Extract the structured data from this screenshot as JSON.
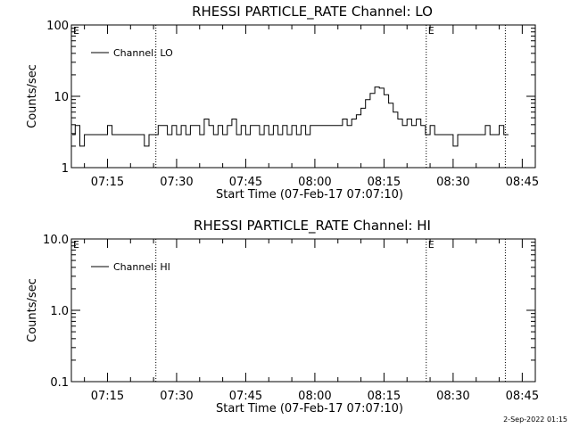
{
  "footer": {
    "timestamp": "2-Sep-2022 01:15"
  },
  "chart_data": [
    {
      "type": "line",
      "title": "RHESSI PARTICLE_RATE Channel: LO",
      "xlabel": "Start Time (07-Feb-17 07:07:10)",
      "ylabel": "Counts/sec",
      "yscale": "log",
      "ylim": [
        1,
        100
      ],
      "yticks": [
        1,
        10,
        100
      ],
      "ytick_labels": [
        "1",
        "10",
        "100"
      ],
      "xlim": [
        "07:07:10",
        "08:47:50"
      ],
      "xticks": [
        "07:15",
        "07:30",
        "07:45",
        "08:00",
        "08:15",
        "08:30",
        "08:45"
      ],
      "vlines": [
        "07:25:30",
        "08:24:10",
        "08:41:20"
      ],
      "markers": [
        {
          "text": "E",
          "x": "07:07:10"
        },
        {
          "text": "E",
          "x": "08:24:10"
        }
      ],
      "legend": {
        "location": "upper-left"
      },
      "series": [
        {
          "name": "Channel: LO",
          "x": [
            "07:07",
            "07:08",
            "07:09",
            "07:10",
            "07:11",
            "07:12",
            "07:13",
            "07:14",
            "07:15",
            "07:16",
            "07:17",
            "07:18",
            "07:19",
            "07:20",
            "07:21",
            "07:22",
            "07:23",
            "07:24",
            "07:25",
            "07:26",
            "07:27",
            "07:28",
            "07:29",
            "07:30",
            "07:31",
            "07:32",
            "07:33",
            "07:34",
            "07:35",
            "07:36",
            "07:37",
            "07:38",
            "07:39",
            "07:40",
            "07:41",
            "07:42",
            "07:43",
            "07:44",
            "07:45",
            "07:46",
            "07:47",
            "07:48",
            "07:49",
            "07:50",
            "07:51",
            "07:52",
            "07:53",
            "07:54",
            "07:55",
            "07:56",
            "07:57",
            "07:58",
            "07:59",
            "08:00",
            "08:01",
            "08:02",
            "08:03",
            "08:04",
            "08:05",
            "08:06",
            "08:07",
            "08:08",
            "08:09",
            "08:10",
            "08:11",
            "08:12",
            "08:13",
            "08:14",
            "08:15",
            "08:16",
            "08:17",
            "08:18",
            "08:19",
            "08:20",
            "08:21",
            "08:22",
            "08:23",
            "08:24",
            "08:25",
            "08:26",
            "08:27",
            "08:28",
            "08:29",
            "08:30",
            "08:31",
            "08:32",
            "08:33",
            "08:34",
            "08:35",
            "08:36",
            "08:37",
            "08:38",
            "08:39",
            "08:40",
            "08:41"
          ],
          "y": [
            2.9,
            3.9,
            2.0,
            2.9,
            2.9,
            2.9,
            2.9,
            2.9,
            3.9,
            2.9,
            2.9,
            2.9,
            2.9,
            2.9,
            2.9,
            2.9,
            2.0,
            2.9,
            2.9,
            3.9,
            3.9,
            2.9,
            3.9,
            2.9,
            3.9,
            2.9,
            3.9,
            3.9,
            2.9,
            4.8,
            3.9,
            2.9,
            3.9,
            2.9,
            3.9,
            4.8,
            2.9,
            3.9,
            2.9,
            3.9,
            3.9,
            2.9,
            3.9,
            2.9,
            3.9,
            2.9,
            3.9,
            2.9,
            3.9,
            2.9,
            3.9,
            2.9,
            3.9,
            3.9,
            3.9,
            3.9,
            3.9,
            3.9,
            3.9,
            4.8,
            3.9,
            4.8,
            5.5,
            6.8,
            9.0,
            11.0,
            13.5,
            13.0,
            10.5,
            8.0,
            6.0,
            4.8,
            3.9,
            4.8,
            3.9,
            4.8,
            3.9,
            2.9,
            3.9,
            2.9,
            2.9,
            2.9,
            2.9,
            2.0,
            2.9,
            2.9,
            2.9,
            2.9,
            2.9,
            2.9,
            3.9,
            2.9,
            2.9,
            3.9,
            2.9
          ]
        }
      ]
    },
    {
      "type": "line",
      "title": "RHESSI PARTICLE_RATE Channel: HI",
      "xlabel": "Start Time (07-Feb-17 07:07:10)",
      "ylabel": "Counts/sec",
      "yscale": "log",
      "ylim": [
        0.1,
        10
      ],
      "yticks": [
        0.1,
        1,
        10
      ],
      "ytick_labels": [
        "0.1",
        "1.0",
        "10.0"
      ],
      "xlim": [
        "07:07:10",
        "08:47:50"
      ],
      "xticks": [
        "07:15",
        "07:30",
        "07:45",
        "08:00",
        "08:15",
        "08:30",
        "08:45"
      ],
      "vlines": [
        "07:25:30",
        "08:24:10",
        "08:41:20"
      ],
      "markers": [
        {
          "text": "E",
          "x": "07:07:10"
        },
        {
          "text": "E",
          "x": "08:24:10"
        }
      ],
      "legend": {
        "location": "upper-left"
      },
      "series": [
        {
          "name": "Channel: HI",
          "x": [],
          "y": []
        }
      ]
    }
  ]
}
